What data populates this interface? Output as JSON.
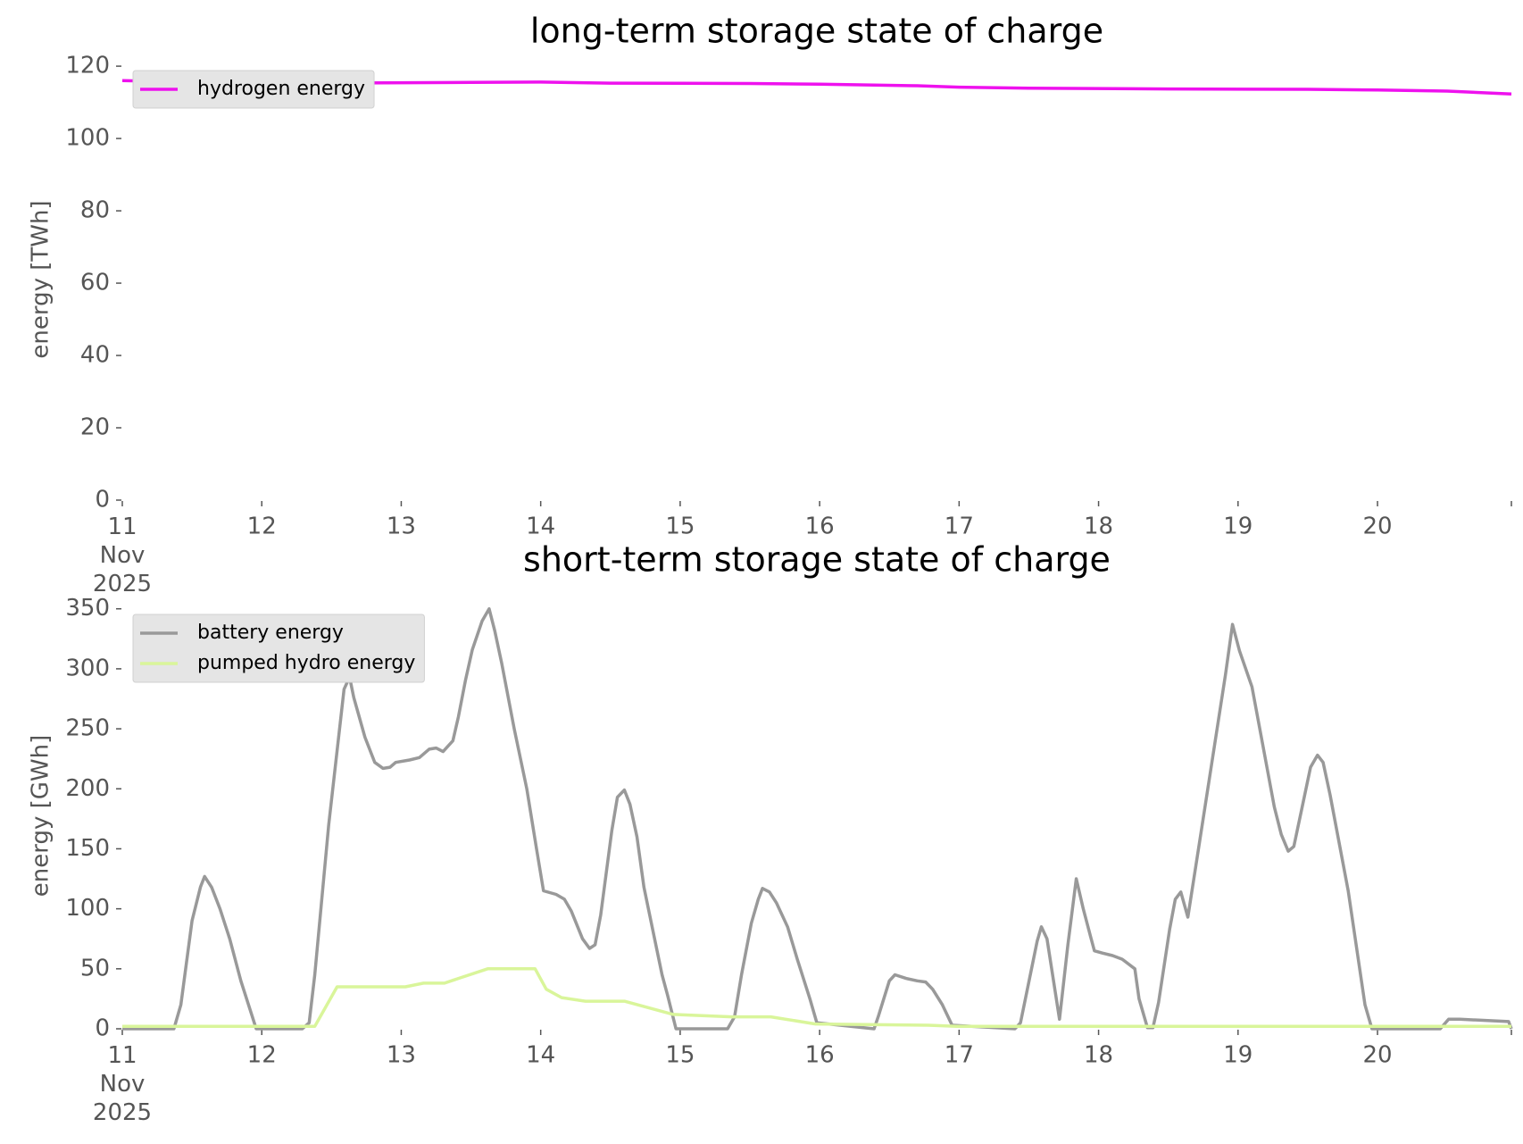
{
  "chart_data": [
    {
      "type": "line",
      "title": "long-term storage state of charge",
      "y_label": "energy [TWh]",
      "xlim": [
        11,
        20.96
      ],
      "xticks": [
        {
          "value": 11,
          "label": "11\nNov\n2025"
        },
        12,
        13,
        14,
        15,
        16,
        17,
        18,
        19,
        20
      ],
      "ylim": [
        0,
        122
      ],
      "yticks": [
        0,
        20,
        40,
        60,
        80,
        100,
        120
      ],
      "legend": "upper left",
      "series": [
        {
          "name": "hydrogen energy",
          "color": "#ee11ee",
          "x": [
            11,
            11.5,
            12.5,
            13.5,
            14,
            14.5,
            15.5,
            16,
            16.7,
            17,
            17.5,
            18.5,
            19.5,
            20,
            20.5,
            20.96
          ],
          "values": [
            116,
            115.6,
            115.3,
            115.5,
            115.6,
            115.3,
            115.2,
            115,
            114.6,
            114.2,
            113.9,
            113.7,
            113.6,
            113.4,
            113.1,
            112.3
          ]
        }
      ]
    },
    {
      "type": "line",
      "title": "short-term storage state of charge",
      "y_label": "energy [GWh]",
      "xlim": [
        11,
        20.96
      ],
      "xticks": [
        {
          "value": 11,
          "label": "11\nNov\n2025"
        },
        12,
        13,
        14,
        15,
        16,
        17,
        18,
        19,
        20
      ],
      "ylim": [
        0,
        355
      ],
      "yticks": [
        0,
        50,
        100,
        150,
        200,
        250,
        300,
        350
      ],
      "legend": "upper left",
      "series": [
        {
          "name": "battery energy",
          "color": "#999999",
          "x": [
            11,
            11.37,
            11.42,
            11.5,
            11.56,
            11.59,
            11.64,
            11.7,
            11.77,
            11.85,
            11.96,
            12.29,
            12.34,
            12.38,
            12.48,
            12.59,
            12.63,
            12.66,
            12.74,
            12.81,
            12.87,
            12.92,
            12.96,
            13.06,
            13.13,
            13.2,
            13.25,
            13.3,
            13.37,
            13.41,
            13.46,
            13.51,
            13.58,
            13.63,
            13.67,
            13.72,
            13.81,
            13.9,
            13.97,
            14.02,
            14.11,
            14.17,
            14.22,
            14.3,
            14.35,
            14.39,
            14.43,
            14.51,
            14.55,
            14.6,
            14.64,
            14.69,
            14.74,
            14.82,
            14.87,
            14.91,
            14.97,
            15.34,
            15.39,
            15.44,
            15.51,
            15.56,
            15.59,
            15.64,
            15.69,
            15.77,
            15.84,
            15.93,
            15.98,
            16.39,
            16.42,
            16.5,
            16.54,
            16.62,
            16.7,
            16.76,
            16.81,
            16.88,
            16.95,
            17.4,
            17.44,
            17.47,
            17.56,
            17.59,
            17.63,
            17.72,
            17.78,
            17.84,
            17.89,
            17.94,
            17.97,
            18.03,
            18.1,
            18.17,
            18.26,
            18.29,
            18.35,
            18.39,
            18.43,
            18.51,
            18.55,
            18.59,
            18.64,
            18.73,
            18.81,
            18.91,
            18.96,
            19.01,
            19.1,
            19.18,
            19.26,
            19.31,
            19.36,
            19.4,
            19.46,
            19.52,
            19.57,
            19.61,
            19.66,
            19.79,
            19.91,
            19.96,
            20.45,
            20.51,
            20.59,
            20.94,
            20.96
          ],
          "values": [
            0,
            0,
            20,
            90,
            118,
            127,
            118,
            100,
            75,
            40,
            0,
            0,
            5,
            45,
            170,
            283,
            293,
            276,
            243,
            222,
            217,
            218,
            222,
            224,
            226,
            233,
            234,
            231,
            240,
            260,
            290,
            316,
            340,
            350,
            332,
            305,
            250,
            200,
            150,
            115,
            112,
            108,
            98,
            75,
            67,
            70,
            95,
            165,
            193,
            199,
            187,
            160,
            118,
            73,
            45,
            28,
            0,
            0,
            10,
            45,
            88,
            108,
            117,
            114,
            105,
            85,
            58,
            25,
            5,
            0,
            10,
            40,
            45,
            42,
            40,
            39,
            33,
            20,
            3,
            0,
            5,
            22,
            73,
            85,
            75,
            8,
            70,
            125,
            100,
            78,
            65,
            63,
            61,
            58,
            50,
            25,
            1,
            1,
            22,
            83,
            108,
            114,
            93,
            160,
            220,
            295,
            337,
            315,
            285,
            235,
            185,
            162,
            148,
            152,
            185,
            218,
            228,
            222,
            195,
            115,
            20,
            0,
            0,
            8,
            8,
            6,
            0
          ]
        },
        {
          "name": "pumped hydro energy",
          "color": "#d9f59a",
          "x": [
            11,
            12.38,
            12.54,
            13.03,
            13.16,
            13.31,
            13.41,
            13.62,
            13.96,
            14.04,
            14.15,
            14.32,
            14.6,
            14.95,
            15.37,
            15.65,
            15.97,
            16.78,
            16.98,
            20.96
          ],
          "values": [
            2,
            2,
            35,
            35,
            38,
            38,
            42,
            50,
            50,
            33,
            26,
            23,
            23,
            12,
            10,
            10,
            4,
            3,
            2,
            2
          ]
        }
      ]
    }
  ]
}
